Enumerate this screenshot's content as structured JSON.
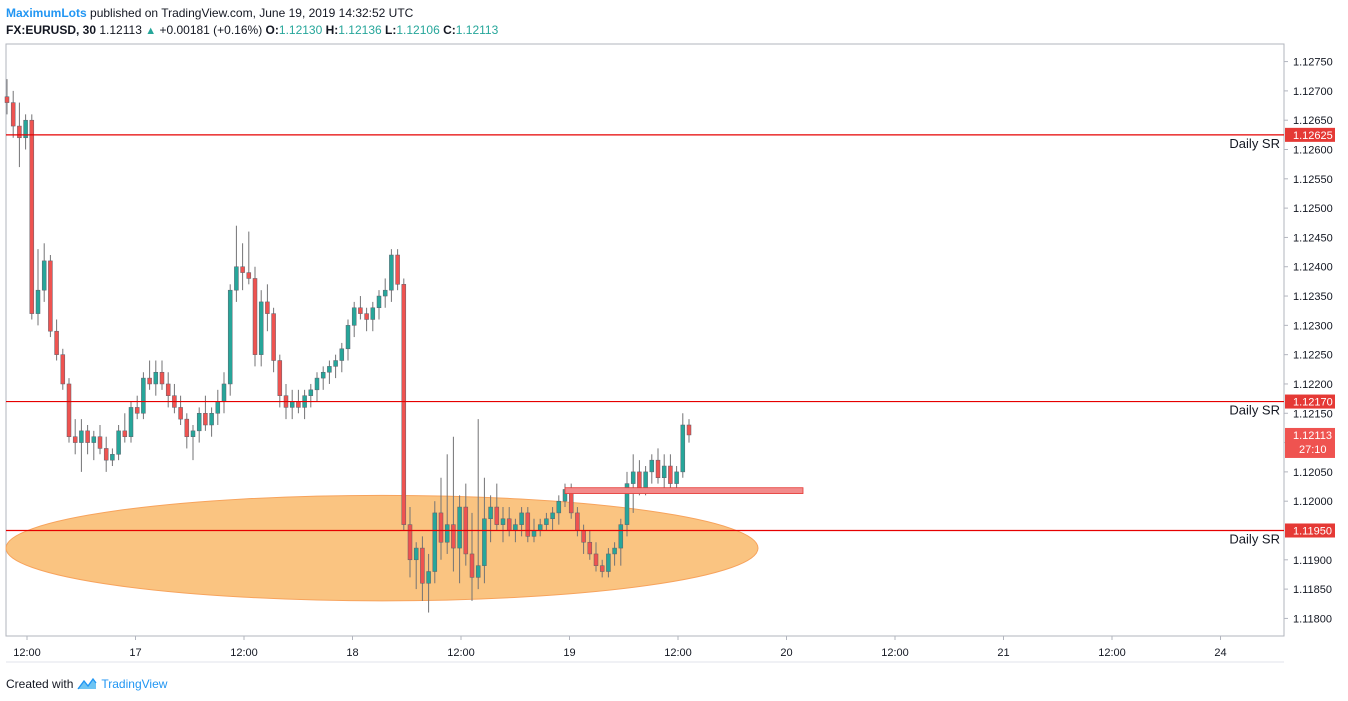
{
  "header": {
    "author": "MaximumLots",
    "published_text": " published on TradingView.com, June 19, 2019 14:32:52 UTC",
    "symbol": "FX:EURUSD, 30",
    "last": "1.12113",
    "change": "+0.00181 (+0.16%)",
    "o_label": "O:",
    "o_value": "1.12130",
    "h_label": "H:",
    "h_value": "1.12136",
    "l_label": "L:",
    "l_value": "1.12106",
    "c_label": "C:",
    "c_value": "1.12113"
  },
  "footer": {
    "created_with": "Created with",
    "brand": "TradingView"
  },
  "colors": {
    "up": "#26a69a",
    "down": "#ef5350",
    "sr_line": "#e60000",
    "zone_fill": "#f9b35e",
    "zone_stroke": "#f7a35c",
    "rect_fill": "#f28b8b",
    "price_tag_bg": "#e53935",
    "current_tag_bg": "#ef5350"
  },
  "chart_data": {
    "type": "candlestick",
    "symbol": "FX:EURUSD",
    "interval": "30",
    "ylim": [
      1.1177,
      1.1278
    ],
    "y_ticks": [
      "1.12750",
      "1.12700",
      "1.12650",
      "1.12600",
      "1.12550",
      "1.12500",
      "1.12450",
      "1.12400",
      "1.12350",
      "1.12300",
      "1.12250",
      "1.12200",
      "1.12150",
      "1.12100",
      "1.12050",
      "1.12000",
      "1.11900",
      "1.11850",
      "1.11800"
    ],
    "x_ticks": [
      "12:00",
      "17",
      "12:00",
      "18",
      "12:00",
      "19",
      "12:00",
      "20",
      "12:00",
      "21",
      "12:00",
      "24"
    ],
    "sr_levels": [
      {
        "price": 1.12625,
        "label": "Daily SR",
        "tag": "1.12625"
      },
      {
        "price": 1.1217,
        "label": "Daily SR",
        "tag": "1.12170"
      },
      {
        "price": 1.1195,
        "label": "Daily SR",
        "tag": "1.11950"
      }
    ],
    "current_price": {
      "tag": "1.12113",
      "countdown": "27:10",
      "price": 1.12113
    },
    "demand_zone": {
      "center_price": 1.1192,
      "price_top": 1.1201,
      "price_bottom": 1.1183,
      "start_time": "2019-06-16 22:00",
      "end_time": "2019-06-20 06:00"
    },
    "supply_rect": {
      "price_top": 1.12023,
      "price_bottom": 1.12013,
      "start_time": "2019-06-18 22:00",
      "end_time": "2019-06-20 06:30"
    },
    "candles": [
      {
        "o": 1.1269,
        "h": 1.1272,
        "l": 1.1266,
        "c": 1.1268
      },
      {
        "o": 1.1268,
        "h": 1.127,
        "l": 1.1262,
        "c": 1.1264
      },
      {
        "o": 1.1264,
        "h": 1.1268,
        "l": 1.1257,
        "c": 1.1262
      },
      {
        "o": 1.1262,
        "h": 1.1266,
        "l": 1.126,
        "c": 1.1265
      },
      {
        "o": 1.1265,
        "h": 1.1266,
        "l": 1.1231,
        "c": 1.1232
      },
      {
        "o": 1.1232,
        "h": 1.1243,
        "l": 1.123,
        "c": 1.1236
      },
      {
        "o": 1.1236,
        "h": 1.1244,
        "l": 1.1234,
        "c": 1.1241
      },
      {
        "o": 1.1241,
        "h": 1.1242,
        "l": 1.1228,
        "c": 1.1229
      },
      {
        "o": 1.1229,
        "h": 1.1231,
        "l": 1.1224,
        "c": 1.1225
      },
      {
        "o": 1.1225,
        "h": 1.1226,
        "l": 1.1219,
        "c": 1.122
      },
      {
        "o": 1.122,
        "h": 1.1221,
        "l": 1.121,
        "c": 1.1211
      },
      {
        "o": 1.1211,
        "h": 1.1214,
        "l": 1.1208,
        "c": 1.121
      },
      {
        "o": 1.121,
        "h": 1.1214,
        "l": 1.1205,
        "c": 1.1212
      },
      {
        "o": 1.1212,
        "h": 1.1213,
        "l": 1.1208,
        "c": 1.121
      },
      {
        "o": 1.121,
        "h": 1.1212,
        "l": 1.1207,
        "c": 1.1211
      },
      {
        "o": 1.1211,
        "h": 1.1213,
        "l": 1.1208,
        "c": 1.1209
      },
      {
        "o": 1.1209,
        "h": 1.1211,
        "l": 1.1205,
        "c": 1.1207
      },
      {
        "o": 1.1207,
        "h": 1.1209,
        "l": 1.1206,
        "c": 1.1208
      },
      {
        "o": 1.1208,
        "h": 1.1213,
        "l": 1.1207,
        "c": 1.1212
      },
      {
        "o": 1.1212,
        "h": 1.1215,
        "l": 1.121,
        "c": 1.1211
      },
      {
        "o": 1.1211,
        "h": 1.1217,
        "l": 1.121,
        "c": 1.1216
      },
      {
        "o": 1.1216,
        "h": 1.1218,
        "l": 1.1214,
        "c": 1.1215
      },
      {
        "o": 1.1215,
        "h": 1.1222,
        "l": 1.1214,
        "c": 1.1221
      },
      {
        "o": 1.1221,
        "h": 1.1224,
        "l": 1.1219,
        "c": 1.122
      },
      {
        "o": 1.122,
        "h": 1.1224,
        "l": 1.1218,
        "c": 1.1222
      },
      {
        "o": 1.1222,
        "h": 1.1224,
        "l": 1.1219,
        "c": 1.122
      },
      {
        "o": 1.122,
        "h": 1.1222,
        "l": 1.1216,
        "c": 1.1218
      },
      {
        "o": 1.1218,
        "h": 1.122,
        "l": 1.1215,
        "c": 1.1216
      },
      {
        "o": 1.1216,
        "h": 1.1218,
        "l": 1.1213,
        "c": 1.1214
      },
      {
        "o": 1.1214,
        "h": 1.1215,
        "l": 1.1209,
        "c": 1.1211
      },
      {
        "o": 1.1211,
        "h": 1.1213,
        "l": 1.1207,
        "c": 1.1212
      },
      {
        "o": 1.1212,
        "h": 1.1216,
        "l": 1.121,
        "c": 1.1215
      },
      {
        "o": 1.1215,
        "h": 1.1218,
        "l": 1.1212,
        "c": 1.1213
      },
      {
        "o": 1.1213,
        "h": 1.1216,
        "l": 1.1211,
        "c": 1.1215
      },
      {
        "o": 1.1215,
        "h": 1.1219,
        "l": 1.1213,
        "c": 1.1217
      },
      {
        "o": 1.1217,
        "h": 1.1222,
        "l": 1.1215,
        "c": 1.122
      },
      {
        "o": 1.122,
        "h": 1.1237,
        "l": 1.1218,
        "c": 1.1236
      },
      {
        "o": 1.1236,
        "h": 1.1247,
        "l": 1.1234,
        "c": 1.124
      },
      {
        "o": 1.124,
        "h": 1.1244,
        "l": 1.1236,
        "c": 1.1239
      },
      {
        "o": 1.1239,
        "h": 1.1246,
        "l": 1.1237,
        "c": 1.1238
      },
      {
        "o": 1.1238,
        "h": 1.124,
        "l": 1.1223,
        "c": 1.1225
      },
      {
        "o": 1.1225,
        "h": 1.1236,
        "l": 1.1223,
        "c": 1.1234
      },
      {
        "o": 1.1234,
        "h": 1.1237,
        "l": 1.1229,
        "c": 1.1232
      },
      {
        "o": 1.1232,
        "h": 1.1233,
        "l": 1.1222,
        "c": 1.1224
      },
      {
        "o": 1.1224,
        "h": 1.1225,
        "l": 1.1216,
        "c": 1.1218
      },
      {
        "o": 1.1218,
        "h": 1.122,
        "l": 1.1214,
        "c": 1.1216
      },
      {
        "o": 1.1216,
        "h": 1.1219,
        "l": 1.1214,
        "c": 1.1217
      },
      {
        "o": 1.1217,
        "h": 1.1219,
        "l": 1.1215,
        "c": 1.1216
      },
      {
        "o": 1.1216,
        "h": 1.1219,
        "l": 1.1214,
        "c": 1.1218
      },
      {
        "o": 1.1218,
        "h": 1.122,
        "l": 1.1216,
        "c": 1.1219
      },
      {
        "o": 1.1219,
        "h": 1.1222,
        "l": 1.1217,
        "c": 1.1221
      },
      {
        "o": 1.1221,
        "h": 1.1223,
        "l": 1.1219,
        "c": 1.1222
      },
      {
        "o": 1.1222,
        "h": 1.1224,
        "l": 1.122,
        "c": 1.1223
      },
      {
        "o": 1.1223,
        "h": 1.1225,
        "l": 1.1221,
        "c": 1.1224
      },
      {
        "o": 1.1224,
        "h": 1.1227,
        "l": 1.1222,
        "c": 1.1226
      },
      {
        "o": 1.1226,
        "h": 1.1231,
        "l": 1.1224,
        "c": 1.123
      },
      {
        "o": 1.123,
        "h": 1.1234,
        "l": 1.1228,
        "c": 1.1233
      },
      {
        "o": 1.1233,
        "h": 1.1235,
        "l": 1.1231,
        "c": 1.1232
      },
      {
        "o": 1.1232,
        "h": 1.1233,
        "l": 1.1229,
        "c": 1.1231
      },
      {
        "o": 1.1231,
        "h": 1.1234,
        "l": 1.1229,
        "c": 1.1233
      },
      {
        "o": 1.1233,
        "h": 1.1236,
        "l": 1.1231,
        "c": 1.1235
      },
      {
        "o": 1.1235,
        "h": 1.1238,
        "l": 1.1233,
        "c": 1.1236
      },
      {
        "o": 1.1236,
        "h": 1.1243,
        "l": 1.1234,
        "c": 1.1242
      },
      {
        "o": 1.1242,
        "h": 1.1243,
        "l": 1.1236,
        "c": 1.1237
      },
      {
        "o": 1.1237,
        "h": 1.1238,
        "l": 1.1195,
        "c": 1.1196
      },
      {
        "o": 1.1196,
        "h": 1.1199,
        "l": 1.1187,
        "c": 1.119
      },
      {
        "o": 1.119,
        "h": 1.1193,
        "l": 1.1185,
        "c": 1.1192
      },
      {
        "o": 1.1192,
        "h": 1.1194,
        "l": 1.1183,
        "c": 1.1186
      },
      {
        "o": 1.1186,
        "h": 1.1191,
        "l": 1.1181,
        "c": 1.1188
      },
      {
        "o": 1.1188,
        "h": 1.12,
        "l": 1.1186,
        "c": 1.1198
      },
      {
        "o": 1.1198,
        "h": 1.1204,
        "l": 1.119,
        "c": 1.1193
      },
      {
        "o": 1.1193,
        "h": 1.1208,
        "l": 1.1191,
        "c": 1.1196
      },
      {
        "o": 1.1196,
        "h": 1.1211,
        "l": 1.1188,
        "c": 1.1192
      },
      {
        "o": 1.1192,
        "h": 1.1201,
        "l": 1.1186,
        "c": 1.1199
      },
      {
        "o": 1.1199,
        "h": 1.1203,
        "l": 1.1189,
        "c": 1.1191
      },
      {
        "o": 1.1191,
        "h": 1.1198,
        "l": 1.1183,
        "c": 1.1187
      },
      {
        "o": 1.1187,
        "h": 1.1214,
        "l": 1.1185,
        "c": 1.1189
      },
      {
        "o": 1.1189,
        "h": 1.1204,
        "l": 1.1186,
        "c": 1.1197
      },
      {
        "o": 1.1197,
        "h": 1.1201,
        "l": 1.1193,
        "c": 1.1199
      },
      {
        "o": 1.1199,
        "h": 1.1203,
        "l": 1.1195,
        "c": 1.1196
      },
      {
        "o": 1.1196,
        "h": 1.1199,
        "l": 1.1193,
        "c": 1.1197
      },
      {
        "o": 1.1197,
        "h": 1.1199,
        "l": 1.1194,
        "c": 1.1195
      },
      {
        "o": 1.1195,
        "h": 1.1197,
        "l": 1.1193,
        "c": 1.1196
      },
      {
        "o": 1.1196,
        "h": 1.1199,
        "l": 1.1194,
        "c": 1.1198
      },
      {
        "o": 1.1198,
        "h": 1.1199,
        "l": 1.1193,
        "c": 1.1194
      },
      {
        "o": 1.1194,
        "h": 1.1197,
        "l": 1.1193,
        "c": 1.1195
      },
      {
        "o": 1.1195,
        "h": 1.1197,
        "l": 1.1194,
        "c": 1.1196
      },
      {
        "o": 1.1196,
        "h": 1.1198,
        "l": 1.1195,
        "c": 1.1197
      },
      {
        "o": 1.1197,
        "h": 1.1199,
        "l": 1.1195,
        "c": 1.1198
      },
      {
        "o": 1.1198,
        "h": 1.1201,
        "l": 1.1196,
        "c": 1.12
      },
      {
        "o": 1.12,
        "h": 1.1203,
        "l": 1.1199,
        "c": 1.1202
      },
      {
        "o": 1.1202,
        "h": 1.1203,
        "l": 1.1197,
        "c": 1.1198
      },
      {
        "o": 1.1198,
        "h": 1.1199,
        "l": 1.1194,
        "c": 1.1195
      },
      {
        "o": 1.1195,
        "h": 1.1196,
        "l": 1.1191,
        "c": 1.1193
      },
      {
        "o": 1.1193,
        "h": 1.1195,
        "l": 1.119,
        "c": 1.1191
      },
      {
        "o": 1.1191,
        "h": 1.1193,
        "l": 1.1188,
        "c": 1.1189
      },
      {
        "o": 1.1189,
        "h": 1.119,
        "l": 1.1187,
        "c": 1.1188
      },
      {
        "o": 1.1188,
        "h": 1.1192,
        "l": 1.1187,
        "c": 1.1191
      },
      {
        "o": 1.1191,
        "h": 1.1193,
        "l": 1.1189,
        "c": 1.1192
      },
      {
        "o": 1.1192,
        "h": 1.1197,
        "l": 1.1189,
        "c": 1.1196
      },
      {
        "o": 1.1196,
        "h": 1.1205,
        "l": 1.1194,
        "c": 1.1203
      },
      {
        "o": 1.1203,
        "h": 1.1208,
        "l": 1.1198,
        "c": 1.1205
      },
      {
        "o": 1.1205,
        "h": 1.1207,
        "l": 1.1201,
        "c": 1.1202
      },
      {
        "o": 1.1202,
        "h": 1.1206,
        "l": 1.1201,
        "c": 1.1205
      },
      {
        "o": 1.1205,
        "h": 1.1208,
        "l": 1.1203,
        "c": 1.1207
      },
      {
        "o": 1.1207,
        "h": 1.1209,
        "l": 1.1203,
        "c": 1.1204
      },
      {
        "o": 1.1204,
        "h": 1.1208,
        "l": 1.1202,
        "c": 1.1206
      },
      {
        "o": 1.1206,
        "h": 1.1208,
        "l": 1.1202,
        "c": 1.1203
      },
      {
        "o": 1.1203,
        "h": 1.1206,
        "l": 1.1202,
        "c": 1.1205
      },
      {
        "o": 1.1205,
        "h": 1.1215,
        "l": 1.1204,
        "c": 1.1213
      },
      {
        "o": 1.1213,
        "h": 1.1214,
        "l": 1.121,
        "c": 1.12113
      }
    ]
  }
}
